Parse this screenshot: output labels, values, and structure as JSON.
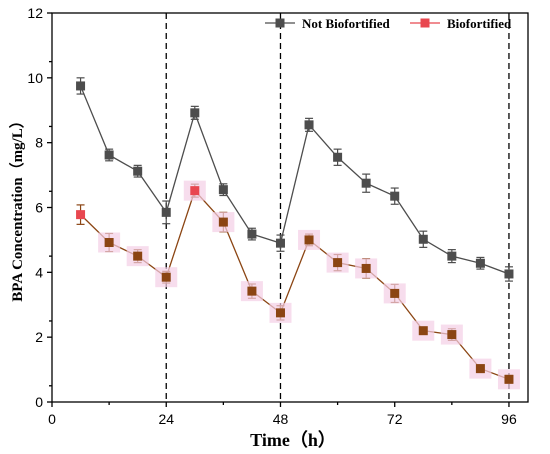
{
  "chart_data": {
    "type": "line",
    "xlabel": "Time（h）",
    "ylabel": "BPA Concentration（mg/L）",
    "xlim": [
      0,
      100
    ],
    "ylim": [
      0,
      12
    ],
    "xticks": [
      0,
      24,
      48,
      72,
      96
    ],
    "yticks": [
      0,
      2,
      4,
      6,
      8,
      10,
      12
    ],
    "grid": false,
    "legend_position": "top-right",
    "divider_lines_x": [
      24,
      48,
      96
    ],
    "x": [
      6,
      12,
      18,
      24,
      30,
      36,
      42,
      48,
      54,
      60,
      66,
      72,
      78,
      84,
      90,
      96
    ],
    "series": [
      {
        "name": "Not Biofortified",
        "color": "#4d4d4d",
        "marker_color": "#4d4d4d",
        "values": [
          9.75,
          7.62,
          7.12,
          5.85,
          8.92,
          6.55,
          5.18,
          4.9,
          8.55,
          7.55,
          6.75,
          6.35,
          5.02,
          4.5,
          4.28,
          3.95
        ],
        "errors": [
          0.25,
          0.18,
          0.18,
          0.35,
          0.2,
          0.18,
          0.18,
          0.25,
          0.2,
          0.25,
          0.28,
          0.25,
          0.25,
          0.2,
          0.18,
          0.22
        ]
      },
      {
        "name": "Biofortified",
        "color": "#8b4513",
        "marker_color": "#e8474f",
        "values": [
          5.78,
          4.92,
          4.5,
          3.85,
          6.52,
          5.55,
          3.42,
          2.75,
          5.0,
          4.3,
          4.12,
          3.35,
          2.2,
          2.08,
          1.03,
          0.7
        ],
        "errors": [
          0.3,
          0.28,
          0.2,
          0.18,
          0.2,
          0.3,
          0.22,
          0.22,
          0.18,
          0.25,
          0.3,
          0.28,
          0.08,
          0.18,
          0.12,
          0.12
        ]
      }
    ]
  }
}
